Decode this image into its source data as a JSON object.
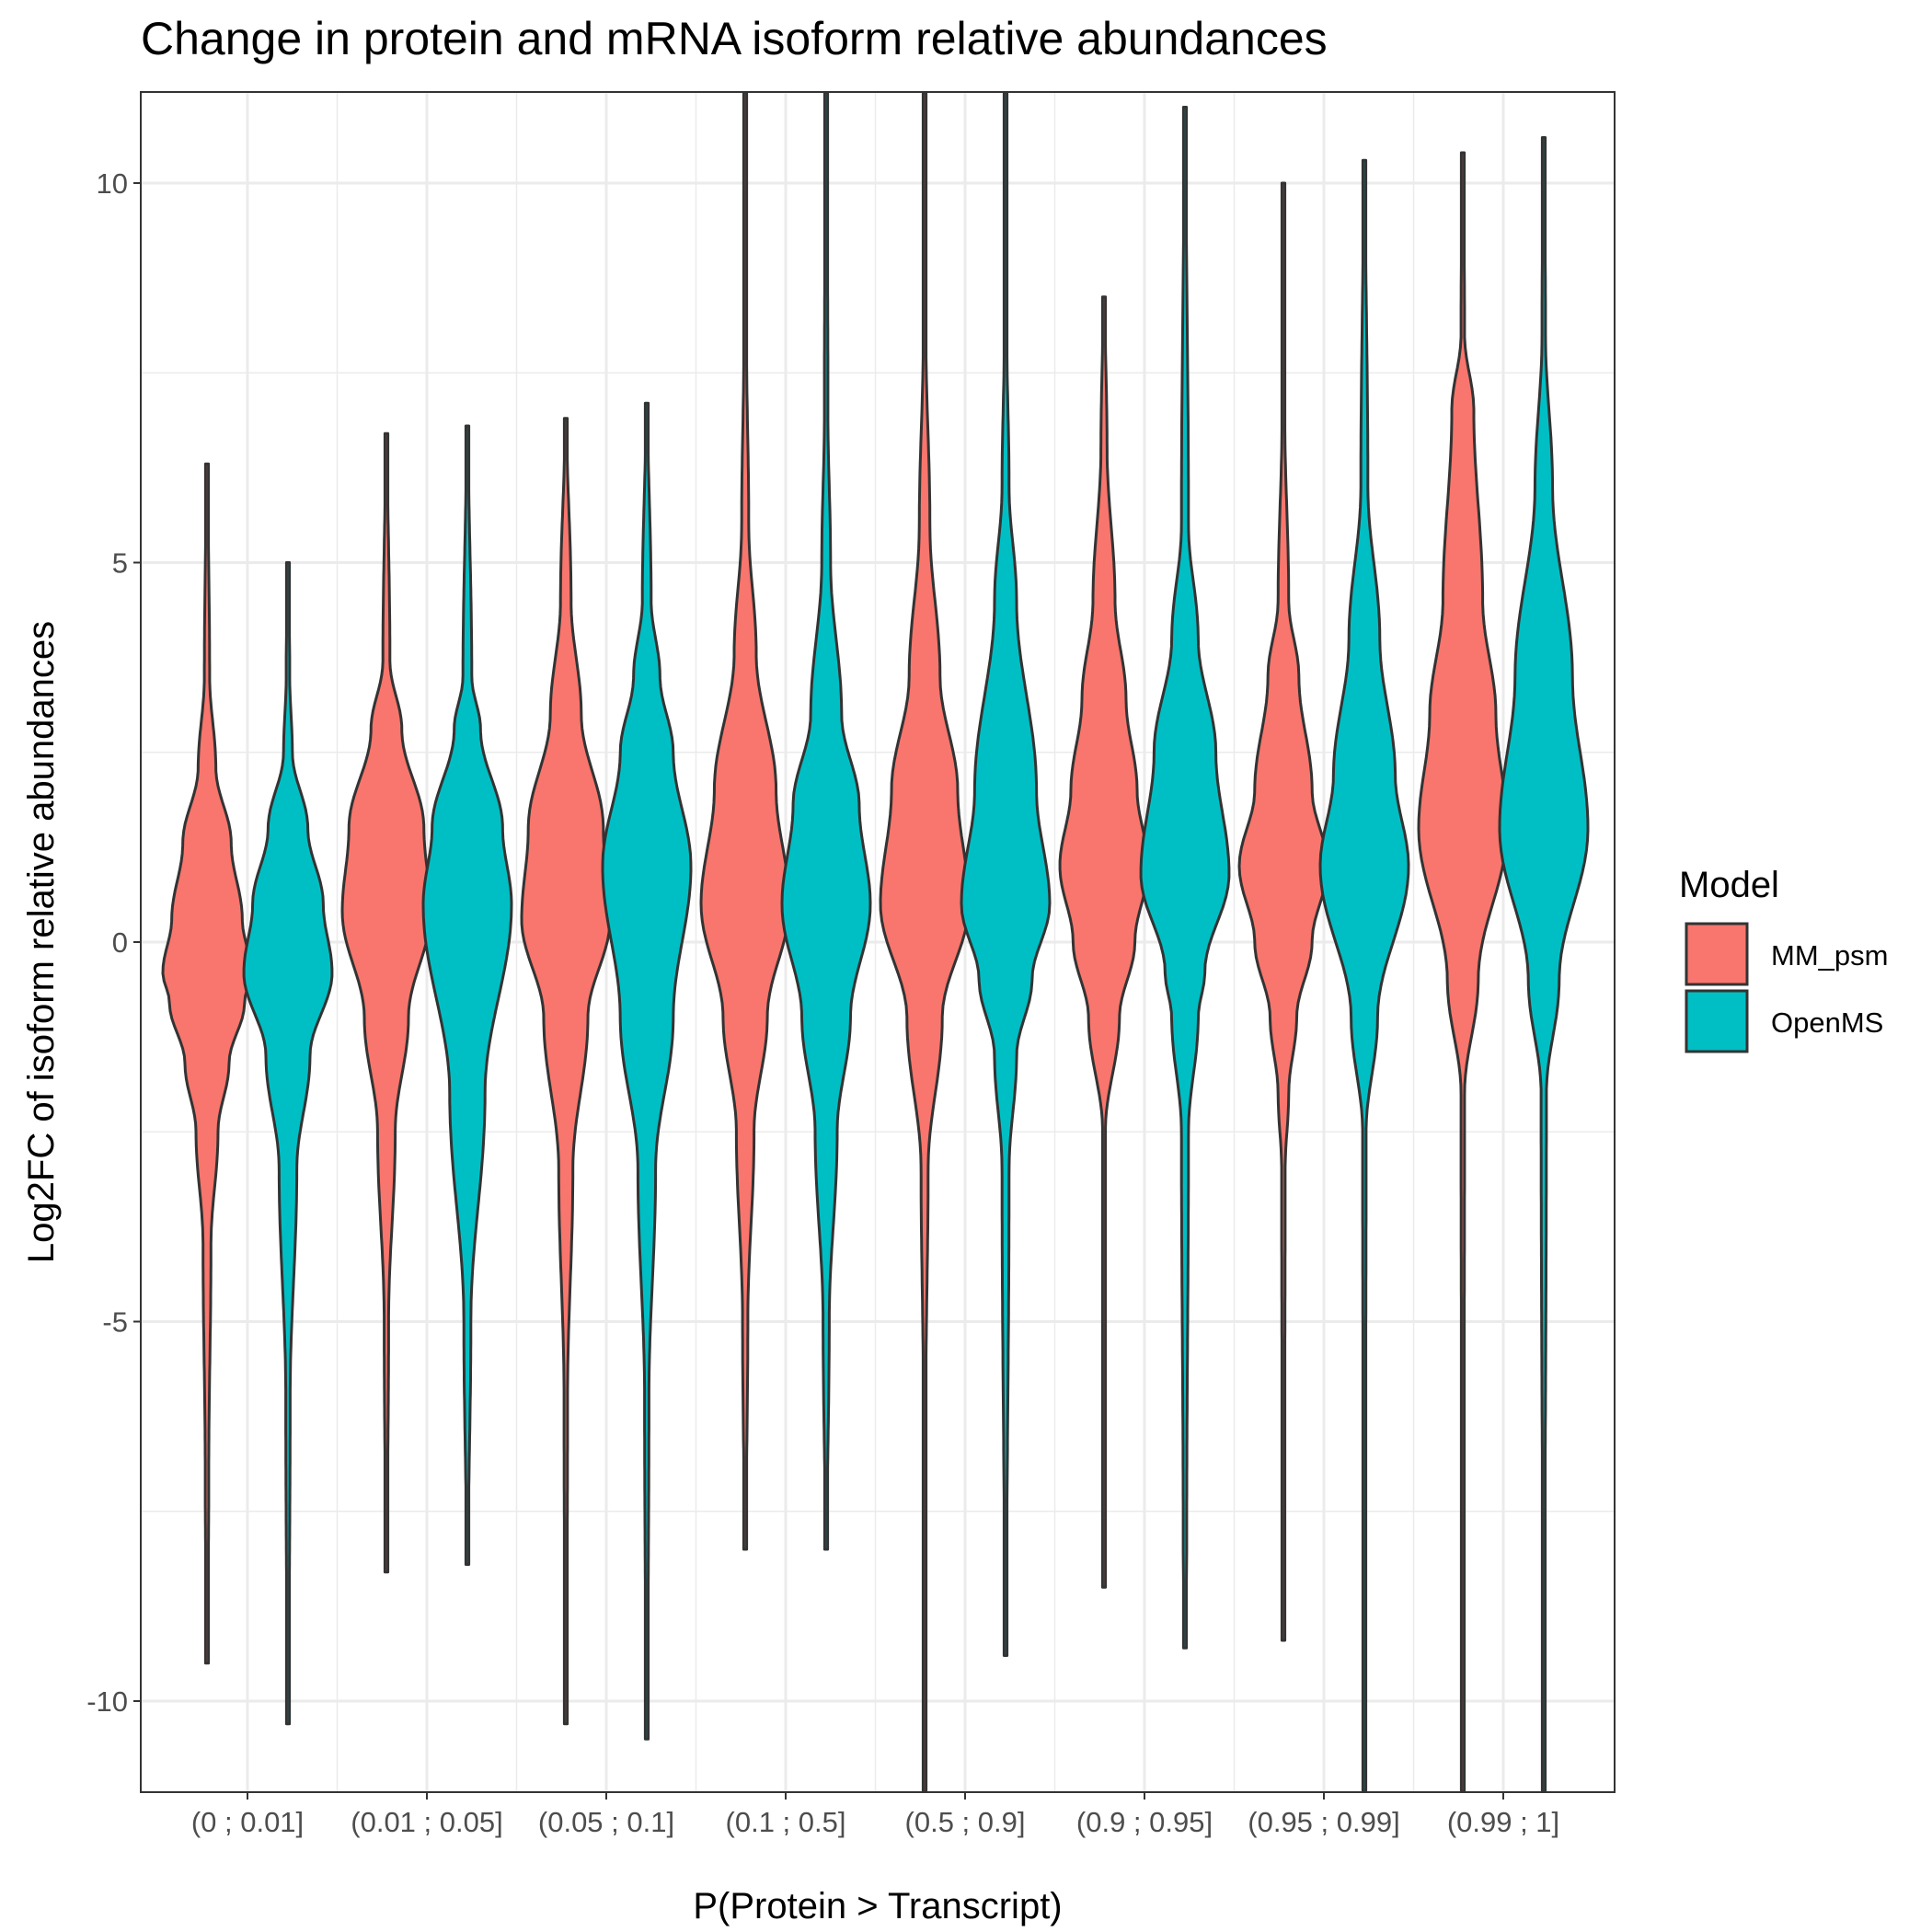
{
  "chart_data": {
    "type": "violin",
    "title": "Change in protein and mRNA isoform relative abundances",
    "xlabel": "P(Protein > Transcript)",
    "ylabel": "Log2FC of isoform relative abundances",
    "ylim": [
      -11.2,
      11.2
    ],
    "y_ticks": [
      10,
      5,
      0,
      -5,
      -10
    ],
    "y_tick_labels": [
      "10",
      "5",
      "0",
      "-5",
      "-10"
    ],
    "grid": true,
    "legend": {
      "title": "Model",
      "position": "right",
      "entries": [
        {
          "label": "MM_psm",
          "color": "#F8766D"
        },
        {
          "label": "OpenMS",
          "color": "#00BFC4"
        }
      ]
    },
    "colors": {
      "MM_psm": "#F8766D",
      "OpenMS": "#00BFC4",
      "outline": "#333333"
    },
    "categories": [
      "(0 ; 0.01]",
      "(0.01 ; 0.05]",
      "(0.05 ; 0.1]",
      "(0.1 ; 0.5]",
      "(0.5 ; 0.9]",
      "(0.9 ; 0.95]",
      "(0.95 ; 0.99]",
      "(0.99 ; 1]"
    ],
    "series": [
      {
        "name": "MM_psm",
        "violins": [
          {
            "min": -9.5,
            "max": 6.3,
            "mode": -0.4,
            "profile": [
              [
                -9.5,
                0.02
              ],
              [
                -7,
                0.04
              ],
              [
                -4,
                0.09
              ],
              [
                -2.5,
                0.25
              ],
              [
                -1.6,
                0.5
              ],
              [
                -0.8,
                0.85
              ],
              [
                -0.4,
                1
              ],
              [
                0.3,
                0.8
              ],
              [
                1.3,
                0.55
              ],
              [
                2.3,
                0.2
              ],
              [
                3.5,
                0.06
              ],
              [
                6.3,
                0.02
              ]
            ]
          },
          {
            "min": -8.3,
            "max": 6.7,
            "mode": 0.4,
            "profile": [
              [
                -8.3,
                0.02
              ],
              [
                -5,
                0.05
              ],
              [
                -2.5,
                0.2
              ],
              [
                -1,
                0.5
              ],
              [
                0.4,
                1
              ],
              [
                1.5,
                0.85
              ],
              [
                2.8,
                0.35
              ],
              [
                3.7,
                0.08
              ],
              [
                6.7,
                0.02
              ]
            ]
          },
          {
            "min": -10.3,
            "max": 6.9,
            "mode": 0.3,
            "profile": [
              [
                -10.3,
                0.02
              ],
              [
                -6,
                0.04
              ],
              [
                -3,
                0.16
              ],
              [
                -1,
                0.5
              ],
              [
                0.3,
                1
              ],
              [
                1.5,
                0.85
              ],
              [
                3,
                0.35
              ],
              [
                4.5,
                0.12
              ],
              [
                6.9,
                0.02
              ]
            ]
          },
          {
            "min": -8,
            "max": 11.2,
            "mode": 0.5,
            "profile": [
              [
                -8,
                0.02
              ],
              [
                -5,
                0.06
              ],
              [
                -2.5,
                0.2
              ],
              [
                -1,
                0.5
              ],
              [
                0.5,
                1
              ],
              [
                2,
                0.7
              ],
              [
                3.8,
                0.25
              ],
              [
                5.5,
                0.08
              ],
              [
                8,
                0.03
              ],
              [
                11.2,
                0.02
              ]
            ]
          },
          {
            "min": -11.2,
            "max": 11.2,
            "mode": 0.5,
            "profile": [
              [
                -11.2,
                0.01
              ],
              [
                -6,
                0.03
              ],
              [
                -3,
                0.08
              ],
              [
                -1,
                0.4
              ],
              [
                0.5,
                1
              ],
              [
                2,
                0.75
              ],
              [
                3.5,
                0.35
              ],
              [
                5.5,
                0.12
              ],
              [
                8,
                0.03
              ],
              [
                11.2,
                0.01
              ]
            ]
          },
          {
            "min": -8.5,
            "max": 8.5,
            "mode": 1,
            "profile": [
              [
                -8.5,
                0.01
              ],
              [
                -2.5,
                0.03
              ],
              [
                -1,
                0.35
              ],
              [
                0,
                0.7
              ],
              [
                1,
                1
              ],
              [
                2,
                0.75
              ],
              [
                3.2,
                0.5
              ],
              [
                4.5,
                0.25
              ],
              [
                6.5,
                0.07
              ],
              [
                8.5,
                0.02
              ]
            ]
          },
          {
            "min": -9.2,
            "max": 10,
            "mode": 1,
            "profile": [
              [
                -9.2,
                0.02
              ],
              [
                -3,
                0.04
              ],
              [
                -2,
                0.12
              ],
              [
                -1,
                0.3
              ],
              [
                0,
                0.65
              ],
              [
                1,
                1
              ],
              [
                2,
                0.65
              ],
              [
                3.5,
                0.35
              ],
              [
                4.5,
                0.12
              ],
              [
                7,
                0.03
              ],
              [
                10,
                0.02
              ]
            ]
          },
          {
            "min": -11.2,
            "max": 10.4,
            "mode": 1.5,
            "profile": [
              [
                -11.2,
                0.01
              ],
              [
                -2,
                0.04
              ],
              [
                -0.5,
                0.35
              ],
              [
                1.5,
                1
              ],
              [
                3,
                0.75
              ],
              [
                4.5,
                0.45
              ],
              [
                7,
                0.25
              ],
              [
                8,
                0.04
              ],
              [
                10.4,
                0.02
              ]
            ]
          }
        ]
      },
      {
        "name": "OpenMS",
        "violins": [
          {
            "min": -10.3,
            "max": 5,
            "mode": -0.4,
            "profile": [
              [
                -10.3,
                0.02
              ],
              [
                -6,
                0.05
              ],
              [
                -3,
                0.2
              ],
              [
                -1.5,
                0.5
              ],
              [
                -0.4,
                1
              ],
              [
                0.5,
                0.8
              ],
              [
                1.5,
                0.45
              ],
              [
                2.5,
                0.1
              ],
              [
                3.5,
                0.04
              ],
              [
                5,
                0.02
              ]
            ]
          },
          {
            "min": -8.2,
            "max": 6.8,
            "mode": 0.5,
            "profile": [
              [
                -8.2,
                0.02
              ],
              [
                -5,
                0.08
              ],
              [
                -2,
                0.4
              ],
              [
                0.5,
                1
              ],
              [
                1.5,
                0.8
              ],
              [
                2.8,
                0.3
              ],
              [
                3.5,
                0.1
              ],
              [
                6.8,
                0.02
              ]
            ]
          },
          {
            "min": -10.5,
            "max": 7.1,
            "mode": 1,
            "profile": [
              [
                -10.5,
                0.02
              ],
              [
                -6,
                0.05
              ],
              [
                -3,
                0.2
              ],
              [
                -1,
                0.6
              ],
              [
                1,
                1
              ],
              [
                2.5,
                0.6
              ],
              [
                3.5,
                0.3
              ],
              [
                4.5,
                0.1
              ],
              [
                7.1,
                0.02
              ]
            ]
          },
          {
            "min": -8,
            "max": 11.2,
            "mode": 0.5,
            "profile": [
              [
                -8,
                0.02
              ],
              [
                -5,
                0.07
              ],
              [
                -2.5,
                0.25
              ],
              [
                -1,
                0.55
              ],
              [
                0.5,
                1
              ],
              [
                1.8,
                0.75
              ],
              [
                3,
                0.35
              ],
              [
                5,
                0.1
              ],
              [
                7,
                0.04
              ],
              [
                11.2,
                0.02
              ]
            ]
          },
          {
            "min": -9.4,
            "max": 11.2,
            "mode": 0.5,
            "profile": [
              [
                -9.4,
                0.02
              ],
              [
                -3,
                0.08
              ],
              [
                -1.5,
                0.25
              ],
              [
                -0.5,
                0.6
              ],
              [
                0.5,
                1
              ],
              [
                2,
                0.7
              ],
              [
                4.5,
                0.25
              ],
              [
                6,
                0.08
              ],
              [
                8,
                0.03
              ],
              [
                11.2,
                0.02
              ]
            ]
          },
          {
            "min": -9.3,
            "max": 11,
            "mode": 0.9,
            "profile": [
              [
                -9.3,
                0.02
              ],
              [
                -7.8,
                0.04
              ],
              [
                -2.5,
                0.08
              ],
              [
                -1,
                0.3
              ],
              [
                -0.4,
                0.45
              ],
              [
                0.9,
                1
              ],
              [
                2.5,
                0.7
              ],
              [
                4,
                0.3
              ],
              [
                5.5,
                0.08
              ],
              [
                11,
                0.02
              ]
            ]
          },
          {
            "min": -11.2,
            "max": 10.3,
            "mode": 1,
            "profile": [
              [
                -11.2,
                0.01
              ],
              [
                -2.5,
                0.04
              ],
              [
                -1,
                0.3
              ],
              [
                1,
                1
              ],
              [
                2.2,
                0.7
              ],
              [
                4,
                0.35
              ],
              [
                6,
                0.08
              ],
              [
                10.3,
                0.02
              ]
            ]
          },
          {
            "min": -11.2,
            "max": 10.6,
            "mode": 1.5,
            "profile": [
              [
                -11.2,
                0.01
              ],
              [
                -2,
                0.06
              ],
              [
                -0.5,
                0.35
              ],
              [
                1.5,
                1
              ],
              [
                3.5,
                0.65
              ],
              [
                6,
                0.2
              ],
              [
                8,
                0.04
              ],
              [
                10.6,
                0.02
              ]
            ]
          }
        ]
      }
    ]
  }
}
